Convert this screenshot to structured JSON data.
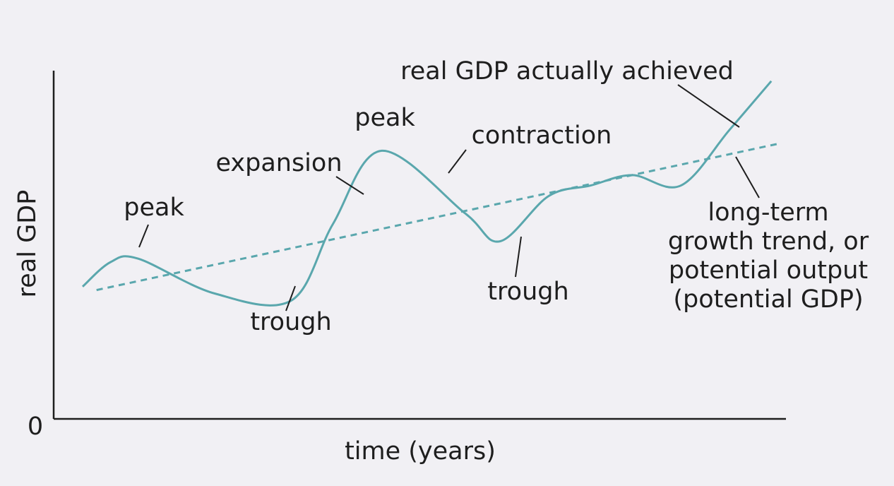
{
  "chart_data": {
    "type": "line",
    "xlabel": "time (years)",
    "ylabel": "real GDP",
    "origin_label": "0",
    "series": [
      {
        "name": "real GDP actually achieved",
        "color": "#5aa7ad",
        "style": "solid",
        "x": [
          0.0,
          0.04,
          0.08,
          0.19,
          0.3,
          0.36,
          0.43,
          0.55,
          0.6,
          0.67,
          0.73,
          0.79,
          0.86,
          0.93,
          0.99
        ],
        "y": [
          0.38,
          0.45,
          0.46,
          0.36,
          0.34,
          0.56,
          0.77,
          0.59,
          0.51,
          0.64,
          0.67,
          0.7,
          0.67,
          0.83,
          0.97
        ]
      },
      {
        "name": "long-term growth trend, or potential output (potential GDP)",
        "color": "#5aa7ad",
        "style": "dashed",
        "x": [
          0.02,
          1.0
        ],
        "y": [
          0.37,
          0.79
        ]
      }
    ],
    "annotations": [
      {
        "id": "peak1",
        "text": [
          "peak"
        ]
      },
      {
        "id": "trough1",
        "text": [
          "trough"
        ]
      },
      {
        "id": "expansion",
        "text": [
          "expansion"
        ]
      },
      {
        "id": "peak2",
        "text": [
          "peak"
        ]
      },
      {
        "id": "contraction",
        "text": [
          "contraction"
        ]
      },
      {
        "id": "trough2",
        "text": [
          "trough"
        ]
      },
      {
        "id": "actual",
        "text": [
          "real GDP actually achieved"
        ]
      },
      {
        "id": "trend",
        "text": [
          "long-term",
          "growth trend, or",
          "potential output",
          "(potential GDP)"
        ]
      }
    ]
  }
}
